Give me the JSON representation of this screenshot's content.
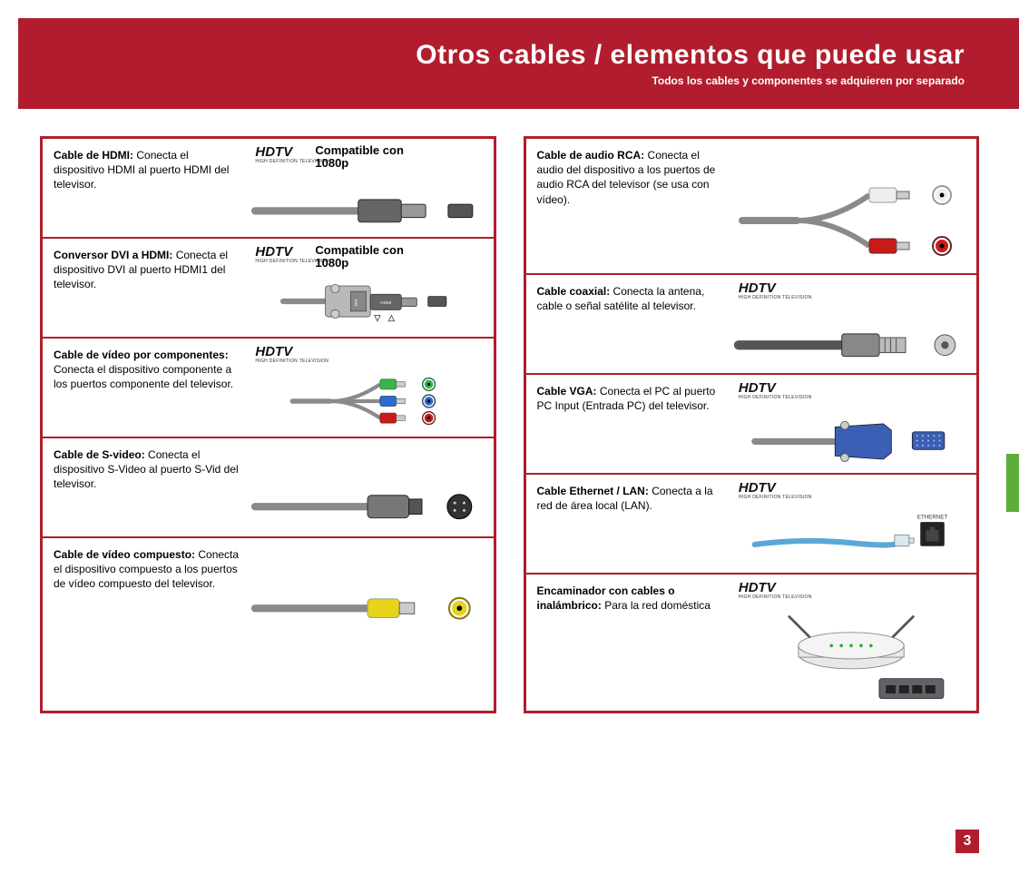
{
  "colors": {
    "brand_red": "#b11d2e",
    "tab_green": "#5aad3b",
    "cable_gray": "#8a8a8a",
    "ethernet_blue": "#5aa8d6"
  },
  "header": {
    "title": "Otros cables / elementos que puede usar",
    "subtitle": "Todos los cables y componentes se adquieren por separado"
  },
  "hdtv_label": "HDTV",
  "hdtv_sub": "HIGH DEFINITION TELEVISION",
  "compat_label_line1": "Compatible con",
  "compat_label_line2": "1080p",
  "ethernet_port_label": "ETHERNET",
  "page_number": "3",
  "left": [
    {
      "label": "Cable de HDMI:",
      "desc": " Conecta el dispositivo HDMI al puerto HDMI del televisor.",
      "hdtv": true,
      "compat": true,
      "art": "hdmi"
    },
    {
      "label": "Conversor DVI a HDMI:",
      "desc": " Conecta el dispositivo DVI al puerto HDMI1 del televisor.",
      "hdtv": true,
      "compat": true,
      "art": "dvi-hdmi"
    },
    {
      "label": "Cable de vídeo por componentes:",
      "desc": " Conecta el dispositivo componente a los puertos componente del televisor.",
      "hdtv": true,
      "compat": false,
      "art": "component"
    },
    {
      "label": "Cable de S-video:",
      "desc": " Conecta el dispositivo S-Video al puerto S-Vid del televisor.",
      "hdtv": false,
      "compat": false,
      "art": "svideo"
    },
    {
      "label": "Cable de vídeo compuesto:",
      "desc": " Conecta el dispositivo compuesto a los puertos de vídeo compuesto del televisor.",
      "hdtv": false,
      "compat": false,
      "art": "composite"
    }
  ],
  "right": [
    {
      "label": "Cable de audio RCA:",
      "desc": " Conecta el audio del dispositivo a los puertos de audio RCA del televisor (se usa con vídeo).",
      "hdtv": false,
      "compat": false,
      "art": "rca-audio",
      "tall": true
    },
    {
      "label": "Cable coaxial:",
      "desc": " Conecta la antena, cable o señal satélite al televisor.",
      "hdtv": true,
      "compat": false,
      "art": "coax"
    },
    {
      "label": "Cable VGA:",
      "desc": " Conecta el PC al puerto PC Input (Entrada PC) del televisor.",
      "hdtv": true,
      "compat": false,
      "art": "vga"
    },
    {
      "label": "Cable Ethernet / LAN:",
      "desc": " Conecta a la red de área local (LAN).",
      "hdtv": true,
      "compat": false,
      "art": "ethernet"
    },
    {
      "label": "Encaminador con cables o inalámbrico:",
      "desc": " Para la red doméstica",
      "hdtv": true,
      "compat": false,
      "art": "router",
      "tall": true
    }
  ]
}
